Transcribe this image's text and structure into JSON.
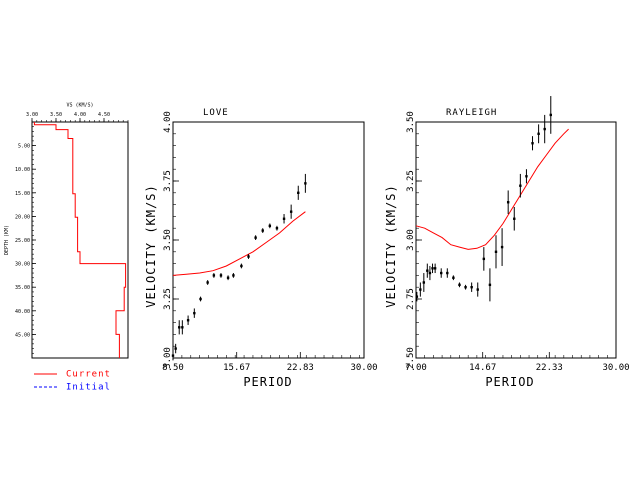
{
  "legend": [
    {
      "label": "Current",
      "color": "#ff0000",
      "dash": false
    },
    {
      "label": "Initial",
      "color": "#0000ff",
      "dash": true
    }
  ],
  "chart_data": [
    {
      "type": "line",
      "id": "profile",
      "title": "",
      "xlabel": "VS (KM/S)",
      "ylabel": "DEPTH (KM)",
      "xlim": [
        3.0,
        5.0
      ],
      "ylim": [
        0,
        50
      ],
      "x_ticks": [
        "3.00",
        "3.50",
        "4.00",
        "4.50"
      ],
      "x_tick_values": [
        3.0,
        3.5,
        4.0,
        4.5
      ],
      "y_ticks": [
        "5.00",
        "10.00",
        "15.00",
        "20.00",
        "25.00",
        "30.00",
        "35.00",
        "40.00",
        "45.00"
      ],
      "y_tick_values": [
        5,
        10,
        15,
        20,
        25,
        30,
        35,
        40,
        45
      ],
      "series": [
        {
          "name": "Current",
          "color": "#ff0000",
          "x": [
            3.05,
            3.05,
            3.5,
            3.5,
            3.75,
            3.75,
            3.85,
            3.85,
            3.85,
            3.85,
            3.9,
            3.9,
            3.95,
            3.95,
            4.0,
            4.0,
            4.35,
            4.35,
            4.95,
            4.95,
            4.92,
            4.92,
            4.75,
            4.75,
            4.82,
            4.82
          ],
          "y": [
            0,
            0.6,
            0.6,
            1.6,
            1.6,
            3.5,
            3.5,
            10.8,
            10.8,
            15.2,
            15.2,
            20.2,
            20.2,
            27.5,
            27.5,
            30,
            30,
            30,
            30,
            35,
            35,
            40,
            40,
            45,
            45,
            50
          ]
        }
      ]
    },
    {
      "type": "scatter",
      "id": "love",
      "title": "LOVE",
      "xlabel": "PERIOD",
      "ylabel": "VELOCITY (KM/S)",
      "xlim": [
        8.5,
        30.0
      ],
      "ylim": [
        3.0,
        4.0
      ],
      "x_ticks": [
        "8.50",
        "15.67",
        "22.83",
        "30.00"
      ],
      "x_tick_values": [
        8.5,
        15.67,
        22.83,
        30.0
      ],
      "y_ticks": [
        "3.00",
        "3.25",
        "3.50",
        "3.75",
        "4.00"
      ],
      "y_tick_values": [
        3.0,
        3.25,
        3.5,
        3.75,
        4.0
      ],
      "observed": {
        "x": [
          8.5,
          8.8,
          9.2,
          9.55,
          10.2,
          10.9,
          11.6,
          12.4,
          13.1,
          13.9,
          14.7,
          15.3,
          16.2,
          17.0,
          17.8,
          18.6,
          19.4,
          20.2,
          21.0,
          21.8,
          22.6,
          23.4
        ],
        "y": [
          3.01,
          3.04,
          3.13,
          3.13,
          3.16,
          3.19,
          3.25,
          3.32,
          3.35,
          3.35,
          3.34,
          3.35,
          3.39,
          3.43,
          3.51,
          3.54,
          3.56,
          3.55,
          3.59,
          3.62,
          3.7,
          3.74
        ],
        "err": [
          0.02,
          0.02,
          0.03,
          0.03,
          0.02,
          0.02,
          0.01,
          0.01,
          0.01,
          0.01,
          0.01,
          0.01,
          0.01,
          0.01,
          0.01,
          0.01,
          0.01,
          0.01,
          0.02,
          0.03,
          0.03,
          0.04
        ]
      },
      "series": [
        {
          "name": "Current",
          "color": "#ff0000",
          "x": [
            8.5,
            10.0,
            11.5,
            13.0,
            14.5,
            16.0,
            17.5,
            19.0,
            20.5,
            22.0,
            23.4
          ],
          "y": [
            3.35,
            3.355,
            3.36,
            3.37,
            3.39,
            3.42,
            3.45,
            3.49,
            3.53,
            3.58,
            3.62
          ]
        }
      ]
    },
    {
      "type": "scatter",
      "id": "rayleigh",
      "title": "RAYLEIGH",
      "xlabel": "PERIOD",
      "ylabel": "VELOCITY (KM/S)",
      "xlim": [
        7.0,
        30.0
      ],
      "ylim": [
        2.5,
        3.5
      ],
      "x_ticks": [
        "7.00",
        "14.67",
        "22.33",
        "30.00"
      ],
      "x_tick_values": [
        7.0,
        14.67,
        22.33,
        30.0
      ],
      "y_ticks": [
        "2.50",
        "2.75",
        "3.00",
        "3.25",
        "3.50"
      ],
      "y_tick_values": [
        2.5,
        2.75,
        3.0,
        3.25,
        3.5
      ],
      "observed": {
        "x": [
          7.1,
          7.5,
          7.9,
          8.3,
          8.6,
          8.9,
          9.2,
          9.9,
          10.6,
          11.3,
          12.0,
          12.7,
          13.4,
          14.1,
          14.8,
          15.5,
          16.2,
          16.9,
          17.6,
          18.3,
          19.0,
          19.7,
          20.4,
          21.1,
          21.8,
          22.5
        ],
        "y": [
          2.76,
          2.79,
          2.82,
          2.87,
          2.86,
          2.88,
          2.88,
          2.86,
          2.86,
          2.84,
          2.81,
          2.8,
          2.8,
          2.79,
          2.92,
          2.81,
          2.95,
          2.97,
          3.16,
          3.09,
          3.23,
          3.27,
          3.41,
          3.45,
          3.47,
          3.53
        ],
        "err": [
          0.02,
          0.03,
          0.04,
          0.03,
          0.03,
          0.02,
          0.02,
          0.02,
          0.02,
          0.01,
          0.01,
          0.01,
          0.02,
          0.03,
          0.05,
          0.07,
          0.07,
          0.08,
          0.05,
          0.05,
          0.05,
          0.03,
          0.03,
          0.04,
          0.06,
          0.08
        ]
      },
      "series": [
        {
          "name": "Current",
          "color": "#ff0000",
          "x": [
            7.0,
            8.0,
            9.0,
            10.0,
            11.0,
            12.0,
            13.0,
            14.0,
            15.0,
            16.0,
            17.0,
            18.0,
            19.0,
            20.0,
            21.0,
            22.0,
            23.0,
            24.0,
            24.55
          ],
          "y": [
            3.06,
            3.05,
            3.03,
            3.01,
            2.98,
            2.97,
            2.96,
            2.965,
            2.98,
            3.02,
            3.07,
            3.13,
            3.19,
            3.25,
            3.31,
            3.36,
            3.41,
            3.45,
            3.47
          ]
        }
      ]
    }
  ]
}
